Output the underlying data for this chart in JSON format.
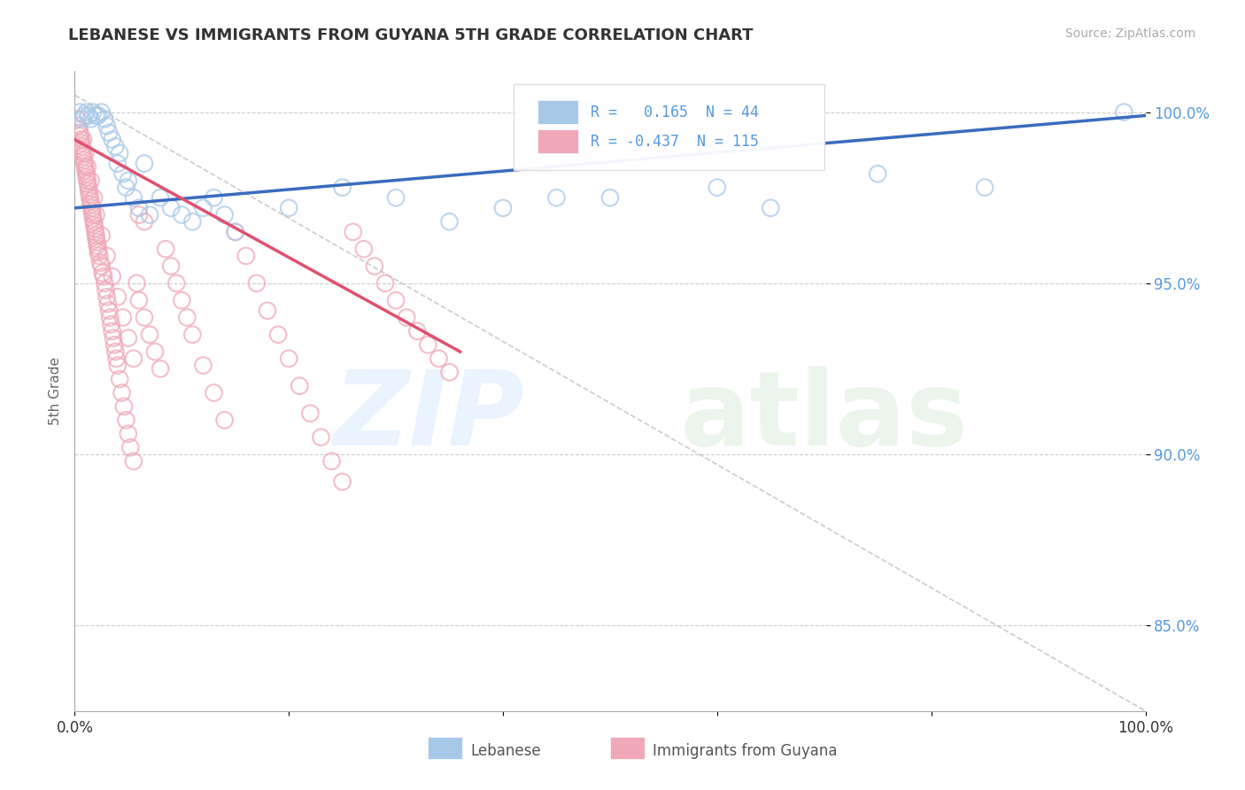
{
  "title": "LEBANESE VS IMMIGRANTS FROM GUYANA 5TH GRADE CORRELATION CHART",
  "source_text": "Source: ZipAtlas.com",
  "ylabel": "5th Grade",
  "R_blue": 0.165,
  "N_blue": 44,
  "R_pink": -0.437,
  "N_pink": 115,
  "blue_color": "#a8c8e8",
  "pink_color": "#f0a8b8",
  "blue_line_color": "#3a6bbf",
  "pink_line_color": "#e05070",
  "ref_line_color": "#cccccc",
  "yaxis_color": "#5599dd",
  "background_color": "#ffffff",
  "xmin": 0.0,
  "xmax": 1.0,
  "ymin": 0.825,
  "ymax": 1.012,
  "ytick_vals": [
    1.0,
    0.95,
    0.9,
    0.85
  ],
  "ytick_labels": [
    "100.0%",
    "95.0%",
    "90.0%",
    "85.0%"
  ],
  "legend_blue_label": "Lebanese",
  "legend_pink_label": "Immigrants from Guyana",
  "blue_trend_x": [
    0.0,
    1.0
  ],
  "blue_trend_y": [
    0.972,
    0.999
  ],
  "pink_trend_x": [
    0.0,
    0.36
  ],
  "pink_trend_y": [
    0.992,
    0.93
  ],
  "ref_line_x": [
    0.0,
    1.0
  ],
  "ref_line_y": [
    1.005,
    0.825
  ],
  "blue_scatter_x": [
    0.005,
    0.007,
    0.009,
    0.011,
    0.013,
    0.015,
    0.017,
    0.02,
    0.022,
    0.025,
    0.028,
    0.03,
    0.032,
    0.035,
    0.038,
    0.04,
    0.042,
    0.045,
    0.048,
    0.05,
    0.055,
    0.06,
    0.065,
    0.07,
    0.08,
    0.09,
    0.1,
    0.11,
    0.12,
    0.13,
    0.14,
    0.15,
    0.2,
    0.25,
    0.3,
    0.35,
    0.4,
    0.45,
    0.5,
    0.6,
    0.65,
    0.75,
    0.85,
    0.98
  ],
  "blue_scatter_y": [
    1.0,
    0.998,
    0.999,
    1.0,
    0.999,
    0.998,
    1.0,
    0.999,
    0.999,
    1.0,
    0.998,
    0.996,
    0.994,
    0.992,
    0.99,
    0.985,
    0.988,
    0.982,
    0.978,
    0.98,
    0.975,
    0.972,
    0.985,
    0.97,
    0.975,
    0.972,
    0.97,
    0.968,
    0.972,
    0.975,
    0.97,
    0.965,
    0.972,
    0.978,
    0.975,
    0.968,
    0.972,
    0.975,
    0.975,
    0.978,
    0.972,
    0.982,
    0.978,
    1.0
  ],
  "pink_scatter_x": [
    0.002,
    0.003,
    0.004,
    0.005,
    0.005,
    0.006,
    0.006,
    0.007,
    0.007,
    0.008,
    0.008,
    0.009,
    0.009,
    0.01,
    0.01,
    0.011,
    0.011,
    0.012,
    0.012,
    0.013,
    0.013,
    0.014,
    0.014,
    0.015,
    0.015,
    0.016,
    0.016,
    0.017,
    0.017,
    0.018,
    0.018,
    0.019,
    0.019,
    0.02,
    0.02,
    0.021,
    0.021,
    0.022,
    0.022,
    0.023,
    0.024,
    0.025,
    0.026,
    0.027,
    0.028,
    0.029,
    0.03,
    0.031,
    0.032,
    0.033,
    0.034,
    0.035,
    0.036,
    0.037,
    0.038,
    0.039,
    0.04,
    0.042,
    0.044,
    0.046,
    0.048,
    0.05,
    0.052,
    0.055,
    0.058,
    0.06,
    0.065,
    0.07,
    0.075,
    0.08,
    0.085,
    0.09,
    0.095,
    0.1,
    0.105,
    0.11,
    0.12,
    0.13,
    0.14,
    0.15,
    0.16,
    0.17,
    0.18,
    0.19,
    0.2,
    0.21,
    0.22,
    0.23,
    0.24,
    0.25,
    0.26,
    0.27,
    0.28,
    0.29,
    0.3,
    0.31,
    0.32,
    0.33,
    0.34,
    0.35,
    0.008,
    0.01,
    0.012,
    0.015,
    0.018,
    0.02,
    0.025,
    0.03,
    0.035,
    0.04,
    0.045,
    0.05,
    0.055,
    0.06,
    0.065
  ],
  "pink_scatter_y": [
    0.998,
    0.996,
    0.995,
    0.994,
    0.993,
    0.992,
    0.991,
    0.99,
    0.989,
    0.988,
    0.987,
    0.986,
    0.985,
    0.984,
    0.983,
    0.982,
    0.981,
    0.98,
    0.979,
    0.978,
    0.977,
    0.976,
    0.975,
    0.974,
    0.973,
    0.972,
    0.971,
    0.97,
    0.969,
    0.968,
    0.967,
    0.966,
    0.965,
    0.964,
    0.963,
    0.962,
    0.961,
    0.96,
    0.959,
    0.958,
    0.956,
    0.955,
    0.953,
    0.952,
    0.95,
    0.948,
    0.946,
    0.944,
    0.942,
    0.94,
    0.938,
    0.936,
    0.934,
    0.932,
    0.93,
    0.928,
    0.926,
    0.922,
    0.918,
    0.914,
    0.91,
    0.906,
    0.902,
    0.898,
    0.95,
    0.945,
    0.94,
    0.935,
    0.93,
    0.925,
    0.96,
    0.955,
    0.95,
    0.945,
    0.94,
    0.935,
    0.926,
    0.918,
    0.91,
    0.965,
    0.958,
    0.95,
    0.942,
    0.935,
    0.928,
    0.92,
    0.912,
    0.905,
    0.898,
    0.892,
    0.965,
    0.96,
    0.955,
    0.95,
    0.945,
    0.94,
    0.936,
    0.932,
    0.928,
    0.924,
    0.992,
    0.988,
    0.984,
    0.98,
    0.975,
    0.97,
    0.964,
    0.958,
    0.952,
    0.946,
    0.94,
    0.934,
    0.928,
    0.97,
    0.968
  ]
}
